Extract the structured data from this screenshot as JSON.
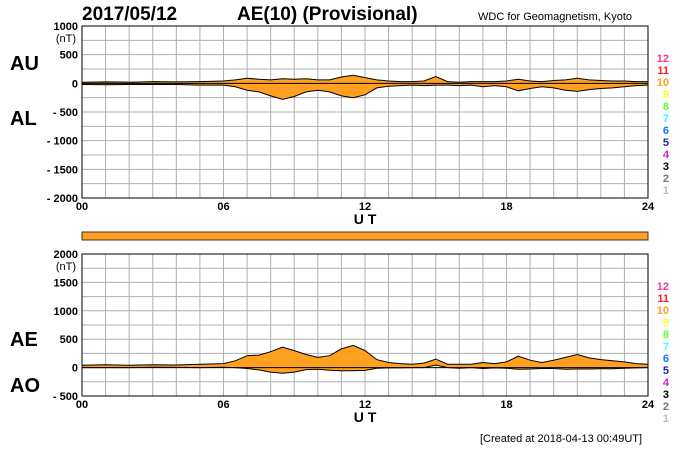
{
  "header": {
    "date": "2017/05/12",
    "title": "AE(10) (Provisional)",
    "organization": "WDC for Geomagnetism, Kyoto",
    "created": "[Created at 2018-04-13 00:49UT]"
  },
  "colors": {
    "fill": "#ffa020",
    "line": "#000000",
    "grid": "#b0b0b0",
    "bar": "#ffa020"
  },
  "station_legend": [
    {
      "label": "12",
      "color": "#ff3399"
    },
    {
      "label": "11",
      "color": "#ff2020"
    },
    {
      "label": "10",
      "color": "#ffa020"
    },
    {
      "label": "9",
      "color": "#ffff22"
    },
    {
      "label": "8",
      "color": "#66ff33"
    },
    {
      "label": "7",
      "color": "#33ffff"
    },
    {
      "label": "6",
      "color": "#1177ff"
    },
    {
      "label": "5",
      "color": "#2222aa"
    },
    {
      "label": "4",
      "color": "#cc22cc"
    },
    {
      "label": "3",
      "color": "#000000"
    },
    {
      "label": "2",
      "color": "#777777"
    },
    {
      "label": "1",
      "color": "#bbbbbb"
    }
  ],
  "chart_data": [
    {
      "type": "area",
      "name": "AU/AL",
      "unit_label": "(nT)",
      "upper_label": "AU",
      "lower_label": "AL",
      "xlabel": "U T",
      "xlim": [
        0,
        24
      ],
      "xticks": [
        "00",
        "06",
        "12",
        "18",
        "24"
      ],
      "ylim": [
        -2000,
        1000
      ],
      "yticks": [
        1000,
        500,
        0,
        -500,
        -1000,
        -1500,
        -2000
      ],
      "ytick_labels": [
        "1000",
        "500",
        "0",
        "- 500",
        "- 1000",
        "- 1500",
        "- 2000"
      ],
      "x": [
        0,
        1,
        2,
        3,
        4,
        5,
        6,
        6.5,
        7,
        7.5,
        8,
        8.5,
        9,
        9.5,
        10,
        10.5,
        11,
        11.5,
        12,
        12.5,
        13,
        13.5,
        14,
        14.5,
        15,
        15.5,
        16,
        16.5,
        17,
        17.5,
        18,
        18.5,
        19,
        19.5,
        20,
        20.5,
        21,
        21.5,
        22,
        22.5,
        23,
        23.5,
        24
      ],
      "series": [
        {
          "name": "AU",
          "values": [
            20,
            25,
            20,
            30,
            25,
            30,
            40,
            60,
            90,
            70,
            60,
            80,
            70,
            80,
            60,
            60,
            110,
            140,
            100,
            60,
            40,
            30,
            30,
            40,
            120,
            30,
            20,
            30,
            30,
            30,
            40,
            70,
            40,
            30,
            50,
            60,
            90,
            60,
            50,
            40,
            40,
            30,
            30
          ]
        },
        {
          "name": "AL",
          "values": [
            -20,
            -25,
            -20,
            -20,
            -20,
            -30,
            -30,
            -60,
            -120,
            -150,
            -220,
            -280,
            -230,
            -150,
            -120,
            -150,
            -220,
            -250,
            -200,
            -80,
            -50,
            -40,
            -30,
            -40,
            -30,
            -30,
            -40,
            -30,
            -60,
            -40,
            -60,
            -130,
            -90,
            -60,
            -80,
            -120,
            -140,
            -110,
            -90,
            -80,
            -60,
            -40,
            -30
          ]
        }
      ]
    },
    {
      "type": "area",
      "name": "AE/AO",
      "unit_label": "(nT)",
      "upper_label": "AE",
      "lower_label": "AO",
      "xlabel": "U T",
      "xlim": [
        0,
        24
      ],
      "xticks": [
        "00",
        "06",
        "12",
        "18",
        "24"
      ],
      "ylim": [
        -500,
        2000
      ],
      "yticks": [
        2000,
        1500,
        1000,
        500,
        0,
        -500
      ],
      "ytick_labels": [
        "2000",
        "1500",
        "1000",
        "500",
        "0",
        "- 500"
      ],
      "x": [
        0,
        1,
        2,
        3,
        4,
        5,
        6,
        6.5,
        7,
        7.5,
        8,
        8.5,
        9,
        9.5,
        10,
        10.5,
        11,
        11.5,
        12,
        12.5,
        13,
        13.5,
        14,
        14.5,
        15,
        15.5,
        16,
        16.5,
        17,
        17.5,
        18,
        18.5,
        19,
        19.5,
        20,
        20.5,
        21,
        21.5,
        22,
        22.5,
        23,
        23.5,
        24
      ],
      "series": [
        {
          "name": "AE",
          "values": [
            40,
            50,
            40,
            50,
            45,
            60,
            70,
            120,
            210,
            220,
            280,
            360,
            300,
            230,
            180,
            210,
            330,
            390,
            300,
            140,
            90,
            70,
            60,
            80,
            150,
            60,
            60,
            60,
            90,
            70,
            100,
            200,
            130,
            90,
            130,
            180,
            230,
            170,
            140,
            120,
            100,
            70,
            60
          ]
        },
        {
          "name": "AO",
          "values": [
            0,
            0,
            0,
            5,
            3,
            0,
            5,
            0,
            -15,
            -40,
            -80,
            -100,
            -80,
            -35,
            -30,
            -45,
            -55,
            -55,
            -50,
            -10,
            -5,
            -5,
            0,
            0,
            45,
            0,
            -10,
            0,
            -15,
            -5,
            -10,
            -30,
            -25,
            -15,
            -15,
            -30,
            -25,
            -25,
            -20,
            -20,
            -10,
            -5,
            0
          ]
        }
      ]
    }
  ]
}
